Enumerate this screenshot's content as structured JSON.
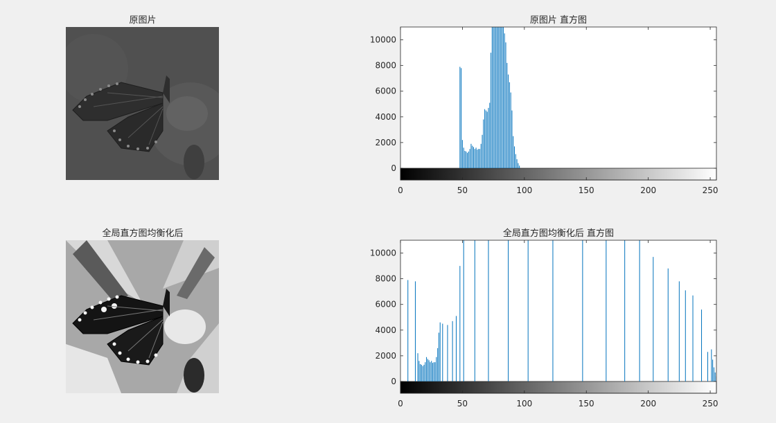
{
  "panels": {
    "orig_image_title": "原图片",
    "orig_hist_title": "原图片  直方图",
    "eq_image_title": "全局直方图均衡化后",
    "eq_hist_title": "全局直方图均衡化后  直方图"
  },
  "colors": {
    "figure_bg": "#f0f0f0",
    "stem": "#0072bd",
    "axis": "#262626"
  },
  "chart_data": [
    {
      "type": "bar",
      "title": "原图片  直方图",
      "xlabel": "",
      "ylabel": "",
      "xlim": [
        0,
        255
      ],
      "ylim": [
        0,
        11000
      ],
      "xticks": [
        0,
        50,
        100,
        150,
        200,
        250
      ],
      "yticks": [
        0,
        2000,
        4000,
        6000,
        8000,
        10000
      ],
      "colorbar": "grayscale 0-255",
      "x": [
        48,
        49,
        50,
        51,
        52,
        53,
        54,
        55,
        56,
        57,
        58,
        59,
        60,
        61,
        62,
        63,
        64,
        65,
        66,
        67,
        68,
        69,
        70,
        71,
        72,
        73,
        74,
        75,
        76,
        77,
        78,
        79,
        80,
        81,
        82,
        83,
        84,
        85,
        86,
        87,
        88,
        89,
        90,
        91,
        92,
        93,
        94,
        95,
        96
      ],
      "values": [
        7900,
        7800,
        2200,
        1600,
        1350,
        1300,
        1200,
        1300,
        1500,
        1900,
        1750,
        1650,
        1500,
        1600,
        1450,
        1500,
        1500,
        1900,
        2600,
        3800,
        4600,
        4500,
        4400,
        4700,
        5100,
        9000,
        11000,
        11000,
        11000,
        11000,
        11000,
        11000,
        11000,
        11000,
        11000,
        11000,
        10500,
        9800,
        8200,
        7300,
        6700,
        5900,
        4500,
        2500,
        1700,
        1100,
        700,
        400,
        200
      ]
    },
    {
      "type": "bar",
      "title": "全局直方图均衡化后  直方图",
      "xlabel": "",
      "ylabel": "",
      "xlim": [
        0,
        255
      ],
      "ylim": [
        0,
        11000
      ],
      "xticks": [
        0,
        50,
        100,
        150,
        200,
        250
      ],
      "yticks": [
        0,
        2000,
        4000,
        6000,
        8000,
        10000
      ],
      "colorbar": "grayscale 0-255",
      "x": [
        6,
        12,
        14,
        15,
        16,
        17,
        18,
        19,
        20,
        21,
        22,
        23,
        24,
        25,
        26,
        27,
        28,
        29,
        30,
        31,
        32,
        34,
        38,
        42,
        45,
        48,
        51,
        60,
        71,
        87,
        103,
        123,
        147,
        166,
        181,
        193,
        204,
        216,
        225,
        230,
        236,
        243,
        248,
        251,
        252,
        253,
        254,
        255
      ],
      "values": [
        7900,
        7800,
        2200,
        1600,
        1350,
        1300,
        1200,
        1300,
        1500,
        1900,
        1750,
        1650,
        1500,
        1600,
        1450,
        1500,
        1500,
        1900,
        2600,
        3800,
        4600,
        4500,
        4400,
        4700,
        5100,
        9000,
        11000,
        11000,
        11000,
        11000,
        11000,
        11000,
        11000,
        11000,
        11000,
        11000,
        9700,
        8800,
        7800,
        7100,
        6700,
        5600,
        2300,
        2500,
        1700,
        1100,
        700,
        400
      ]
    }
  ]
}
